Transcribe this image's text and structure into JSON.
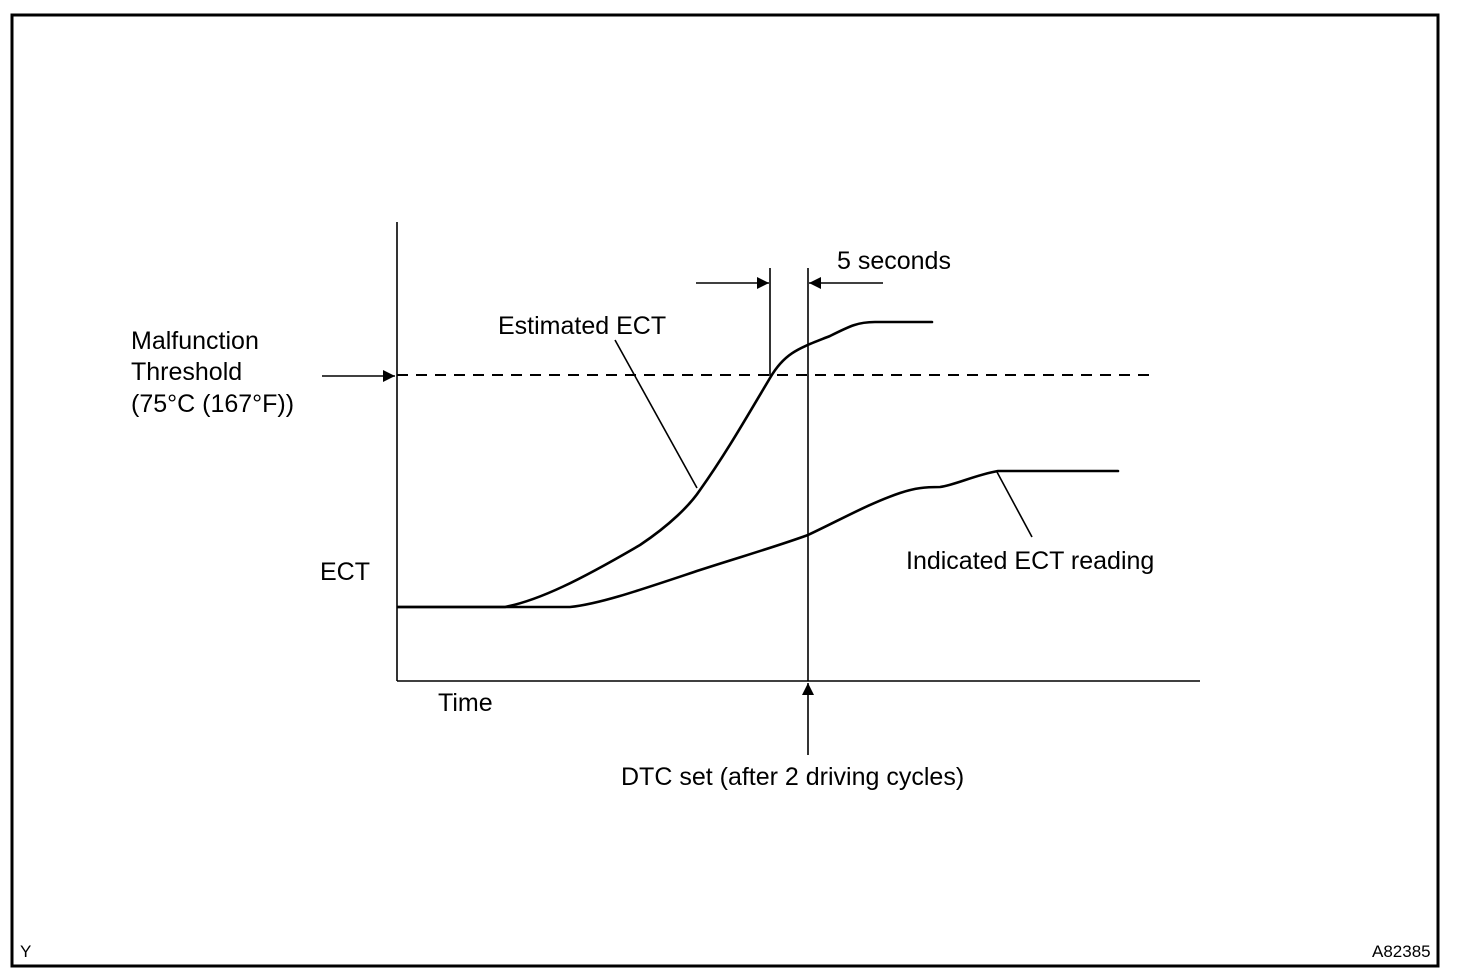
{
  "labels": {
    "threshold_line1": "Malfunction",
    "threshold_line2": "Threshold",
    "threshold_line3": "(75°C (167°F))",
    "estimated": "Estimated ECT",
    "indicated": "Indicated ECT reading",
    "y_axis": "ECT",
    "x_axis": "Time",
    "interval": "5 seconds",
    "dtc": "DTC set (after 2 driving cycles)",
    "corner_left": "Y",
    "corner_right": "A82385"
  }
}
